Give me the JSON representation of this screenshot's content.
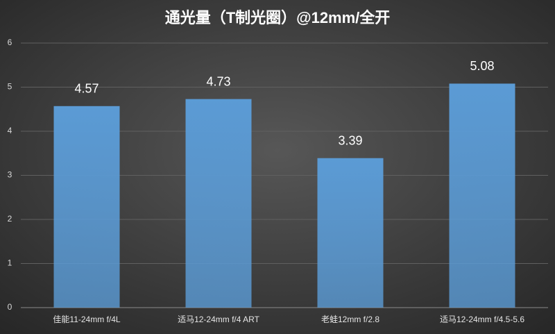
{
  "chart_data": {
    "type": "bar",
    "title": "通光量（T制光圈）@12mm/全开",
    "categories": [
      "佳能11-24mm f/4L",
      "适马12-24mm f/4 ART",
      "老蛙12mm f/2.8",
      "适马12-24mm f/4.5-5.6"
    ],
    "values": [
      4.57,
      4.73,
      3.39,
      5.08
    ],
    "color": "#5b9bd5",
    "ylim": [
      0,
      6
    ],
    "yticks": [
      0,
      1,
      2,
      3,
      4,
      5,
      6
    ],
    "grid": true
  }
}
